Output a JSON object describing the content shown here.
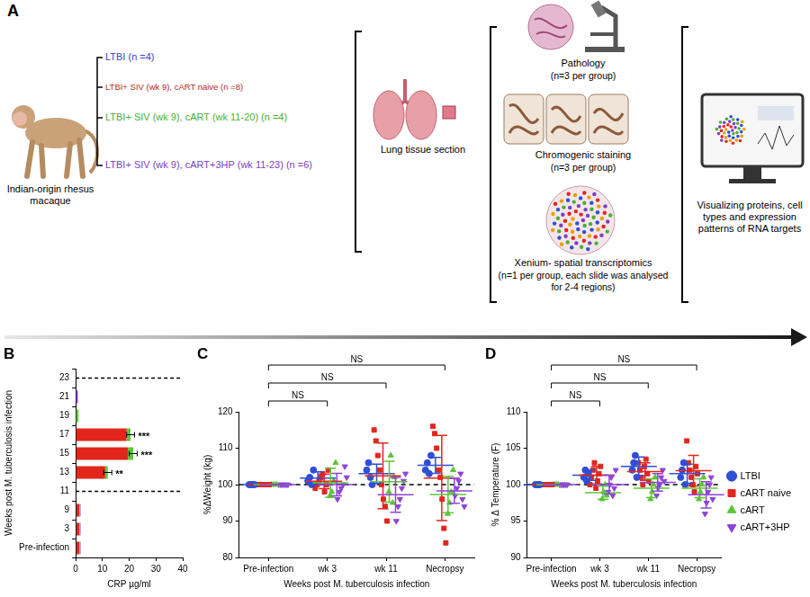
{
  "diagram": {
    "label": "A",
    "subject": "Indian-origin rhesus macaque",
    "groups": [
      {
        "text": "LTBI (n =4)",
        "color": "#3b3fc9"
      },
      {
        "text": "LTBI+ SIV (wk 9), cART naive (n =8)",
        "color": "#b52a22"
      },
      {
        "text": "LTBI+ SIV (wk 9), cART (wk 11-20) (n =4)",
        "color": "#4caf2f"
      },
      {
        "text": "LTBI+ SIV (wk 9), cART+3HP (wk 11-23) (n =6)",
        "color": "#7b3fc4"
      }
    ],
    "sample": "Lung tissue section",
    "methods": [
      {
        "title": "Pathology",
        "detail": "(n=3 per group)"
      },
      {
        "title": "Chromogenic staining",
        "detail": "(n=3 per group)"
      },
      {
        "title": "Xenium- spatial transcriptomics",
        "detail": "(n=1 per group, each slide was analysed for 2-4 regions)"
      }
    ],
    "output": "Visualizing proteins, cell types and expression patterns of RNA targets"
  },
  "chart_data": [
    {
      "panel_label": "B",
      "type": "bar",
      "orientation": "horizontal",
      "stacked": true,
      "grid": false,
      "categories": [
        "23",
        "21",
        "19",
        "17",
        "15",
        "13",
        "11",
        "9",
        "3",
        "Pre-infection"
      ],
      "x_label": "CRP µg/ml",
      "y_label": "Weeks post M. tuberculosis infection",
      "xlim": [
        0,
        40
      ],
      "xticks": [
        0,
        10,
        20,
        30,
        40
      ],
      "reference_lines": [
        "11",
        "23"
      ],
      "annotations": [
        {
          "category": "13",
          "text": "**"
        },
        {
          "category": "15",
          "text": "***"
        },
        {
          "category": "17",
          "text": "***"
        }
      ],
      "series": [
        {
          "name": "LTBI",
          "color": "#2f4fd6",
          "values": [
            0,
            0,
            0,
            0,
            0,
            0,
            0,
            0.3,
            0.3,
            0.3
          ]
        },
        {
          "name": "cART naive",
          "color": "#e3261c",
          "values": [
            0,
            0,
            0,
            19,
            19.5,
            11,
            0,
            1,
            1,
            1
          ]
        },
        {
          "name": "cART",
          "color": "#5ec43a",
          "values": [
            0,
            0,
            1,
            1.5,
            2,
            1,
            0,
            0.2,
            0.2,
            0.2
          ],
          "errors": [
            null,
            null,
            null,
            1.5,
            1.5,
            1.5,
            null,
            null,
            null,
            null
          ]
        },
        {
          "name": "cART+3HP",
          "color": "#8e44d6",
          "values": [
            0,
            0.8,
            0,
            0,
            0,
            0,
            0,
            0.3,
            0.3,
            0.3
          ]
        }
      ]
    },
    {
      "panel_label": "C",
      "type": "scatter",
      "grid": false,
      "categories": [
        "Pre-infection",
        "wk 3",
        "wk 11",
        "Necropsy"
      ],
      "x_label": "Weeks post M. tuberculosis infection",
      "y_label": "%ΔWeight (kg)",
      "ylim": [
        80,
        120
      ],
      "yticks": [
        80,
        90,
        100,
        110,
        120
      ],
      "reference_lines": [
        100
      ],
      "comparisons": [
        {
          "from": "Pre-infection",
          "to": "wk 3",
          "text": "NS"
        },
        {
          "from": "Pre-infection",
          "to": "wk 11",
          "text": "NS"
        },
        {
          "from": "Pre-infection",
          "to": "Necropsy",
          "text": "NS"
        }
      ],
      "series": [
        {
          "name": "LTBI",
          "color": "#2f4fd6",
          "marker": "circle",
          "values": [
            [
              100,
              100,
              100,
              100
            ],
            [
              101,
              102,
              100,
              104
            ],
            [
              104,
              106,
              102,
              100
            ],
            [
              104,
              106,
              103,
              108
            ]
          ],
          "mean": [
            100,
            101.8,
            103,
            105.3
          ],
          "sd": [
            0,
            1.7,
            2.6,
            2.2
          ]
        },
        {
          "name": "cART naive",
          "color": "#e3261c",
          "marker": "square",
          "values": [
            [
              100,
              100,
              100,
              100,
              100,
              100,
              100,
              100
            ],
            [
              99,
              100,
              101,
              102,
              103,
              98,
              100,
              104
            ],
            [
              115,
              112,
              108,
              104,
              100,
              96,
              94,
              90
            ],
            [
              116,
              114,
              110,
              104,
              102,
              96,
              88,
              84
            ]
          ],
          "mean": [
            100,
            100.9,
            102.4,
            101.8
          ],
          "sd": [
            0,
            2,
            9,
            11.7
          ]
        },
        {
          "name": "cART",
          "color": "#5ec43a",
          "marker": "triangle",
          "values": [
            [
              100,
              100,
              100,
              100
            ],
            [
              97,
              98,
              101,
              106
            ],
            [
              98,
              108,
              95,
              102
            ],
            [
              92,
              95,
              98,
              104
            ]
          ],
          "mean": [
            100,
            100.5,
            100.8,
            97.3
          ],
          "sd": [
            0,
            4,
            5.6,
            5
          ]
        },
        {
          "name": "cART+3HP",
          "color": "#8e44d6",
          "marker": "triangle-down",
          "values": [
            [
              100,
              100,
              100,
              100,
              100,
              100
            ],
            [
              96,
              98,
              99,
              100,
              105,
              102
            ],
            [
              90,
              94,
              96,
              99,
              101,
              103
            ],
            [
              97,
              99,
              101,
              103,
              96,
              94
            ]
          ],
          "mean": [
            100,
            100,
            97.2,
            98.3
          ],
          "sd": [
            0,
            3.1,
            4.8,
            3.4
          ]
        }
      ]
    },
    {
      "panel_label": "D",
      "type": "scatter",
      "grid": false,
      "legend": "right",
      "categories": [
        "Pre-infection",
        "wk 3",
        "wk 11",
        "Necropsy"
      ],
      "x_label": "Weeks post M. tuberculosis infection",
      "y_label": "% Δ Temperature (F)",
      "ylim": [
        90,
        110
      ],
      "yticks": [
        90,
        95,
        100,
        105,
        110
      ],
      "reference_lines": [
        100
      ],
      "comparisons": [
        {
          "from": "Pre-infection",
          "to": "wk 3",
          "text": "NS"
        },
        {
          "from": "Pre-infection",
          "to": "wk 11",
          "text": "NS"
        },
        {
          "from": "Pre-infection",
          "to": "Necropsy",
          "text": "NS"
        }
      ],
      "series": [
        {
          "name": "LTBI",
          "color": "#2f4fd6",
          "marker": "circle",
          "values": [
            [
              100,
              100,
              100,
              100
            ],
            [
              101,
              102,
              100.5,
              101.5
            ],
            [
              102,
              103,
              104,
              101
            ],
            [
              101,
              102,
              103,
              100
            ]
          ],
          "mean": [
            100,
            101.3,
            102.5,
            101.5
          ],
          "sd": [
            0,
            0.7,
            1.3,
            1.3
          ]
        },
        {
          "name": "cART naive",
          "color": "#e3261c",
          "marker": "square",
          "values": [
            [
              100,
              100,
              100,
              100,
              100,
              100,
              100,
              100
            ],
            [
              100,
              101,
              102,
              103,
              99.5,
              100.5,
              101.5,
              102.5
            ],
            [
              103,
              102,
              101,
              100,
              102.5,
              103.5,
              101.5,
              100.5
            ],
            [
              106,
              103,
              102,
              101,
              100,
              99,
              102.5,
              101.5
            ]
          ],
          "mean": [
            100,
            101.3,
            101.8,
            101.9
          ],
          "sd": [
            0,
            1.2,
            1.2,
            2.1
          ]
        },
        {
          "name": "cART",
          "color": "#5ec43a",
          "marker": "triangle",
          "values": [
            [
              100,
              100,
              100,
              100
            ],
            [
              98,
              99,
              100,
              98.5
            ],
            [
              98,
              99,
              100,
              101
            ],
            [
              98,
              99,
              100,
              101
            ]
          ],
          "mean": [
            100,
            98.9,
            99.5,
            99.5
          ],
          "sd": [
            0,
            0.9,
            1.3,
            1.3
          ]
        },
        {
          "name": "cART+3HP",
          "color": "#8e44d6",
          "marker": "triangle-down",
          "values": [
            [
              100,
              100,
              100,
              100,
              100,
              100
            ],
            [
              99,
              100,
              101,
              98.5,
              99.5,
              102
            ],
            [
              98.5,
              99.5,
              100,
              101,
              102,
              100.5
            ],
            [
              96,
              97.5,
              99,
              100,
              101,
              98
            ]
          ],
          "mean": [
            100,
            100,
            100.3,
            98.6
          ],
          "sd": [
            0,
            1.3,
            1.2,
            1.8
          ]
        }
      ]
    }
  ]
}
